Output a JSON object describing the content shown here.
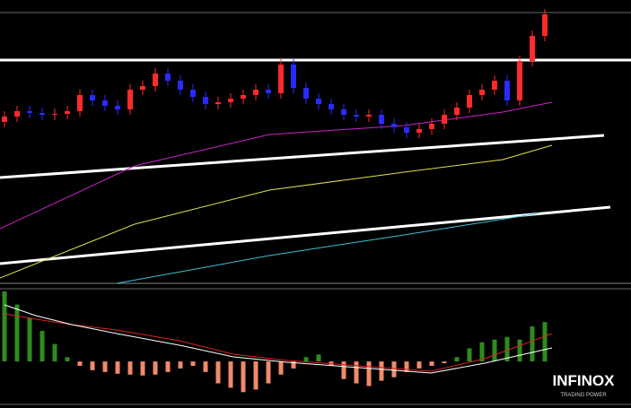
{
  "chart_data": [
    {
      "type": "candlestick",
      "open": [
        180,
        186,
        192,
        190,
        188,
        189,
        192,
        210,
        204,
        198,
        194,
        216,
        220,
        234,
        226,
        216,
        208,
        200,
        202,
        206,
        210,
        216,
        212,
        244,
        218,
        206,
        200,
        194,
        188,
        186,
        188,
        178,
        174,
        168,
        172,
        178,
        188,
        196,
        210,
        216,
        226,
        204,
        248,
        276
      ],
      "high": [
        192,
        198,
        198,
        196,
        195,
        198,
        216,
        216,
        210,
        204,
        222,
        226,
        240,
        240,
        232,
        222,
        214,
        208,
        212,
        216,
        222,
        222,
        250,
        250,
        224,
        212,
        206,
        200,
        194,
        194,
        194,
        184,
        180,
        178,
        184,
        194,
        202,
        216,
        222,
        232,
        232,
        254,
        282,
        306
      ],
      "low": [
        174,
        180,
        184,
        182,
        182,
        183,
        186,
        198,
        192,
        188,
        188,
        210,
        214,
        220,
        210,
        202,
        194,
        194,
        196,
        200,
        204,
        206,
        206,
        212,
        200,
        194,
        188,
        182,
        180,
        180,
        172,
        168,
        162,
        162,
        166,
        172,
        182,
        190,
        204,
        210,
        198,
        198,
        242,
        270
      ],
      "close": [
        186,
        192,
        190,
        188,
        189,
        192,
        210,
        204,
        198,
        194,
        216,
        220,
        234,
        226,
        216,
        208,
        200,
        202,
        206,
        210,
        216,
        212,
        244,
        218,
        206,
        200,
        194,
        188,
        186,
        188,
        178,
        174,
        168,
        172,
        178,
        188,
        196,
        210,
        216,
        226,
        204,
        248,
        276,
        300
      ],
      "up_color": "#ff2a2a",
      "down_color": "#2a2aff",
      "ylim": [
        0,
        316
      ]
    },
    {
      "type": "bar",
      "values": [
        80,
        65,
        50,
        35,
        20,
        5,
        -5,
        -10,
        -12,
        -14,
        -15,
        -16,
        -15,
        -12,
        -8,
        -5,
        -12,
        -25,
        -30,
        -35,
        -32,
        -25,
        -15,
        -8,
        5,
        8,
        -5,
        -20,
        -25,
        -28,
        -22,
        -18,
        -12,
        -8,
        -5,
        -2,
        5,
        15,
        22,
        25,
        28,
        25,
        40,
        45
      ],
      "positive_color": "#2e8b1e",
      "negative_color": "#f08a6a",
      "ylim": [
        -48,
        81
      ]
    }
  ],
  "logo": {
    "name": "INFINOX",
    "tagline": "TRADING POWER"
  }
}
